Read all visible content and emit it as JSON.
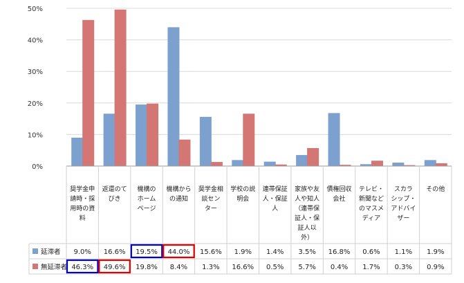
{
  "chart_data": {
    "type": "bar",
    "ylim": [
      0,
      50
    ],
    "yticks": [
      "0%",
      "10%",
      "20%",
      "30%",
      "40%",
      "50%"
    ],
    "grid": true,
    "legend_placement": "bottom (data table rows)",
    "categories": [
      [
        "奨学金申",
        "請時・採",
        "用時の資",
        "料"
      ],
      [
        "返還のて",
        "びき"
      ],
      [
        "機構の",
        "ホーム",
        "ページ"
      ],
      [
        "機構から",
        "の通知"
      ],
      [
        "奨学金相",
        "談セン",
        "ター"
      ],
      [
        "学校の説",
        "明会"
      ],
      [
        "連帯保証",
        "人・保証",
        "人"
      ],
      [
        "家族や友",
        "人や知人",
        "（連帯保",
        "証人・保",
        "証人以",
        "外）"
      ],
      [
        "債権回収",
        "会社"
      ],
      [
        "テレビ・",
        "新聞など",
        "のマスメ",
        "ディア"
      ],
      [
        "スカラ",
        "シップ・",
        "アドバイ",
        "ザー"
      ],
      [
        "その他"
      ]
    ],
    "series": [
      {
        "name": "延滞者",
        "color": "#7da1cf",
        "values": [
          9.0,
          16.6,
          19.5,
          44.0,
          15.6,
          1.9,
          1.4,
          3.5,
          16.8,
          0.6,
          1.1,
          1.9
        ],
        "labels": [
          "9.0%",
          "16.6%",
          "19.5%",
          "44.0%",
          "15.6%",
          "1.9%",
          "1.4%",
          "3.5%",
          "16.8%",
          "0.6%",
          "1.1%",
          "1.9%"
        ]
      },
      {
        "name": "無延滞者",
        "color": "#d47674",
        "values": [
          46.3,
          49.6,
          19.8,
          8.4,
          1.3,
          16.6,
          0.5,
          5.7,
          0.4,
          1.7,
          0.3,
          0.9
        ],
        "labels": [
          "46.3%",
          "49.6%",
          "19.8%",
          "8.4%",
          "1.3%",
          "16.6%",
          "0.5%",
          "5.7%",
          "0.4%",
          "1.7%",
          "0.3%",
          "0.9%"
        ]
      }
    ],
    "highlights": [
      {
        "row": 0,
        "col": 2,
        "color": "#0000cc"
      },
      {
        "row": 0,
        "col": 3,
        "color": "#e00000"
      },
      {
        "row": 1,
        "col": 0,
        "color": "#0000cc"
      },
      {
        "row": 1,
        "col": 1,
        "color": "#e00000"
      }
    ]
  }
}
